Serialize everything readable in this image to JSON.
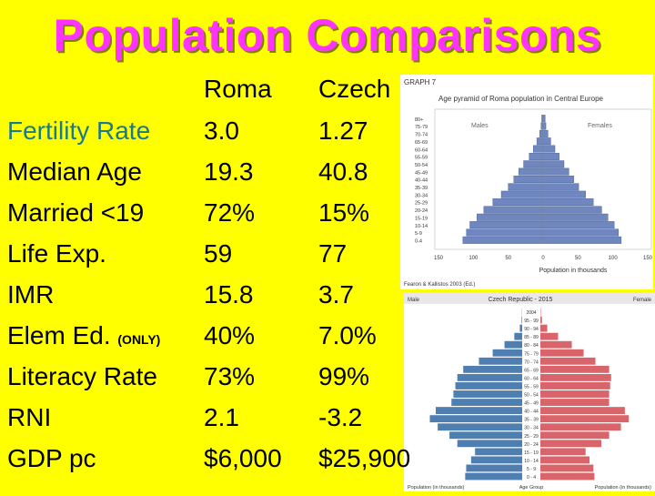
{
  "title": "Population Comparisons",
  "table": {
    "headers": {
      "roma": "Roma",
      "czech": "Czech"
    },
    "rows": [
      {
        "label": "Fertility Rate",
        "roma": "3.0",
        "czech": "1.27"
      },
      {
        "label": "Median Age",
        "roma": "19.3",
        "czech": "40.8"
      },
      {
        "label": "Married <19",
        "roma": "72%",
        "czech": "15%"
      },
      {
        "label": "Life Exp.",
        "roma": "59",
        "czech": "77"
      },
      {
        "label": "IMR",
        "roma": "15.8",
        "czech": "3.7"
      },
      {
        "label": "Elem Ed.",
        "label_note": "(ONLY)",
        "roma": "40%",
        "czech": "7.0%"
      },
      {
        "label": "Literacy Rate",
        "roma": "73%",
        "czech": "99%"
      },
      {
        "label": "RNI",
        "roma": "2.1",
        "czech": "-3.2"
      },
      {
        "label": "GDP pc",
        "roma": "$6,000",
        "czech": "$25,900"
      }
    ]
  },
  "chart_data": [
    {
      "type": "bar",
      "orientation": "horizontal-pyramid",
      "graph_label": "GRAPH 7",
      "title": "Age pyramid of Roma population in Central Europe",
      "categories": [
        "0-4",
        "5-9",
        "10-14",
        "15-19",
        "20-24",
        "25-29",
        "30-34",
        "35-39",
        "40-44",
        "45-49",
        "50-54",
        "55-59",
        "60-64",
        "65-69",
        "70-74",
        "75-79",
        "80+"
      ],
      "series": [
        {
          "name": "Males",
          "values": [
            115,
            110,
            105,
            95,
            85,
            72,
            60,
            50,
            42,
            35,
            28,
            20,
            14,
            9,
            5,
            3,
            2
          ]
        },
        {
          "name": "Females",
          "values": [
            112,
            108,
            102,
            93,
            84,
            72,
            61,
            51,
            44,
            37,
            30,
            23,
            17,
            11,
            7,
            4,
            3
          ]
        }
      ],
      "xlabel": "Population in thousands",
      "xticks": [
        "150",
        "100",
        "50",
        "0",
        "50",
        "100",
        "150"
      ],
      "xlim": [
        -150,
        150
      ],
      "source": "Fearon & Kallistos 2003 (Ed.)",
      "colors": {
        "males": "#6f86bf",
        "females": "#6f86bf"
      }
    },
    {
      "type": "bar",
      "orientation": "horizontal-pyramid",
      "title": "Czech Republic - 2015",
      "left_label": "Male",
      "right_label": "Female",
      "categories": [
        "0 - 4",
        "5 - 9",
        "10 - 14",
        "15 - 19",
        "20 - 24",
        "25 - 29",
        "30 - 34",
        "35 - 39",
        "40 - 44",
        "45 - 49",
        "50 - 54",
        "55 - 59",
        "60 - 64",
        "65 - 69",
        "70 - 74",
        "75 - 79",
        "80 - 84",
        "85 - 89",
        "90 - 94",
        "95 - 99",
        "2004"
      ],
      "series": [
        {
          "name": "Male",
          "values": [
            290,
            285,
            260,
            240,
            330,
            370,
            430,
            470,
            440,
            360,
            350,
            340,
            330,
            300,
            220,
            150,
            90,
            40,
            12,
            3,
            1
          ]
        },
        {
          "name": "Female",
          "values": [
            275,
            270,
            250,
            230,
            310,
            350,
            410,
            450,
            430,
            350,
            350,
            355,
            360,
            350,
            280,
            220,
            160,
            90,
            35,
            8,
            2
          ]
        }
      ],
      "xlabels": [
        "Population (in thousands)",
        "Age Group",
        "Population (in thousands)"
      ],
      "colors": {
        "male": "#4f7fb0",
        "female": "#d9646a"
      }
    }
  ]
}
